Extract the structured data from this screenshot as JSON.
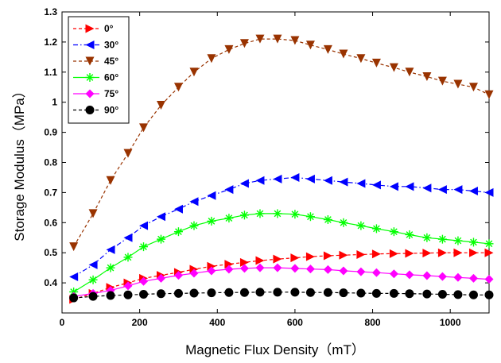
{
  "chart_data": {
    "type": "line",
    "xlabel": "Magnetic Flux Density（mT）",
    "ylabel": "Storage Modulus（MPa）",
    "xlim": [
      0,
      1100
    ],
    "ylim": [
      0.3,
      1.3
    ],
    "x_ticks": [
      "0",
      "200",
      "400",
      "600",
      "800",
      "1000"
    ],
    "y_ticks": [
      "0.4",
      "0.5",
      "0.6",
      "0.7",
      "0.8",
      "0.9",
      "1",
      "1.1",
      "1.2",
      "1.3"
    ],
    "x_tick_values": [
      0,
      200,
      400,
      600,
      800,
      1000
    ],
    "y_tick_values": [
      0.4,
      0.5,
      0.6,
      0.7,
      0.8,
      0.9,
      1.0,
      1.1,
      1.2,
      1.3
    ],
    "grid": false,
    "legend_position": "top-left",
    "series": [
      {
        "name": "0°",
        "color": "#ff0000",
        "marker": "triangle-right",
        "line": "dashed",
        "x": [
          30,
          80,
          125,
          170,
          210,
          255,
          300,
          340,
          385,
          430,
          470,
          510,
          555,
          600,
          640,
          685,
          725,
          770,
          810,
          855,
          895,
          940,
          980,
          1020,
          1060,
          1100
        ],
        "y": [
          0.345,
          0.365,
          0.385,
          0.4,
          0.415,
          0.425,
          0.435,
          0.445,
          0.455,
          0.462,
          0.468,
          0.474,
          0.479,
          0.483,
          0.487,
          0.49,
          0.492,
          0.494,
          0.496,
          0.497,
          0.498,
          0.499,
          0.5,
          0.5,
          0.5,
          0.5
        ]
      },
      {
        "name": "30°",
        "color": "#0000ff",
        "marker": "triangle-left",
        "line": "dash-dot",
        "x": [
          30,
          80,
          125,
          170,
          210,
          255,
          300,
          340,
          385,
          430,
          470,
          510,
          555,
          600,
          640,
          685,
          725,
          770,
          810,
          855,
          895,
          940,
          980,
          1020,
          1060,
          1100
        ],
        "y": [
          0.42,
          0.46,
          0.51,
          0.55,
          0.59,
          0.62,
          0.645,
          0.67,
          0.69,
          0.71,
          0.73,
          0.74,
          0.745,
          0.75,
          0.745,
          0.74,
          0.735,
          0.73,
          0.725,
          0.72,
          0.72,
          0.715,
          0.71,
          0.71,
          0.705,
          0.7
        ]
      },
      {
        "name": "45°",
        "color": "#993300",
        "marker": "triangle-down",
        "line": "dashed",
        "x": [
          30,
          80,
          125,
          170,
          210,
          255,
          300,
          340,
          385,
          430,
          470,
          510,
          555,
          600,
          640,
          685,
          725,
          770,
          810,
          855,
          895,
          940,
          980,
          1020,
          1060,
          1100
        ],
        "y": [
          0.52,
          0.63,
          0.74,
          0.83,
          0.915,
          0.99,
          1.05,
          1.1,
          1.145,
          1.175,
          1.195,
          1.21,
          1.21,
          1.205,
          1.19,
          1.175,
          1.16,
          1.145,
          1.13,
          1.115,
          1.1,
          1.085,
          1.07,
          1.06,
          1.05,
          1.025
        ]
      },
      {
        "name": "60°",
        "color": "#00ff00",
        "marker": "asterisk",
        "line": "solid",
        "x": [
          30,
          80,
          125,
          170,
          210,
          255,
          300,
          340,
          385,
          430,
          470,
          510,
          555,
          600,
          640,
          685,
          725,
          770,
          810,
          855,
          895,
          940,
          980,
          1020,
          1060,
          1100
        ],
        "y": [
          0.37,
          0.41,
          0.45,
          0.485,
          0.52,
          0.545,
          0.57,
          0.59,
          0.605,
          0.615,
          0.625,
          0.63,
          0.63,
          0.628,
          0.62,
          0.61,
          0.6,
          0.59,
          0.58,
          0.57,
          0.56,
          0.55,
          0.545,
          0.54,
          0.535,
          0.53
        ]
      },
      {
        "name": "75°",
        "color": "#ff00ff",
        "marker": "diamond",
        "line": "solid",
        "x": [
          30,
          80,
          125,
          170,
          210,
          255,
          300,
          340,
          385,
          430,
          470,
          510,
          555,
          600,
          640,
          685,
          725,
          770,
          810,
          855,
          895,
          940,
          980,
          1020,
          1060,
          1100
        ],
        "y": [
          0.355,
          0.365,
          0.375,
          0.39,
          0.405,
          0.415,
          0.425,
          0.432,
          0.44,
          0.445,
          0.448,
          0.45,
          0.45,
          0.448,
          0.446,
          0.444,
          0.44,
          0.437,
          0.434,
          0.43,
          0.427,
          0.424,
          0.421,
          0.418,
          0.415,
          0.412
        ]
      },
      {
        "name": "90°",
        "color": "#000000",
        "marker": "circle",
        "line": "dashed",
        "x": [
          30,
          80,
          125,
          170,
          210,
          255,
          300,
          340,
          385,
          430,
          470,
          510,
          555,
          600,
          640,
          685,
          725,
          770,
          810,
          855,
          895,
          940,
          980,
          1020,
          1060,
          1100
        ],
        "y": [
          0.35,
          0.355,
          0.358,
          0.36,
          0.362,
          0.364,
          0.365,
          0.366,
          0.367,
          0.368,
          0.368,
          0.369,
          0.369,
          0.369,
          0.368,
          0.368,
          0.367,
          0.366,
          0.365,
          0.365,
          0.364,
          0.363,
          0.362,
          0.361,
          0.36,
          0.36
        ]
      }
    ]
  }
}
